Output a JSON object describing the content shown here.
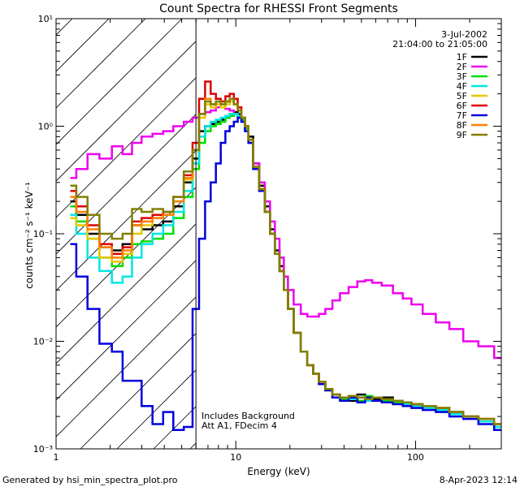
{
  "chart_data": {
    "type": "line",
    "title": "Count Spectra for RHESSI Front Segments",
    "xlabel": "Energy (keV)",
    "ylabel": "counts cm⁻² s⁻¹ keV⁻¹",
    "xscale": "log",
    "yscale": "log",
    "xlim": [
      1,
      300
    ],
    "ylim": [
      0.001,
      10
    ],
    "x_ticks": [
      {
        "value": 1,
        "label": "1"
      },
      {
        "value": 10,
        "label": "10"
      },
      {
        "value": 100,
        "label": "100"
      }
    ],
    "y_ticks": [
      {
        "value": 0.001,
        "label": "10⁻³"
      },
      {
        "value": 0.01,
        "label": "10⁻²"
      },
      {
        "value": 0.1,
        "label": "10⁻¹"
      },
      {
        "value": 1,
        "label": "10⁰"
      },
      {
        "value": 10,
        "label": "10¹"
      }
    ],
    "date": "3-Jul-2002",
    "time_range": "21:04:00 to 21:05:00",
    "annotations": [
      "Includes Background",
      "Att A1, FDecim 4"
    ],
    "shaded_region": {
      "xmin": 1,
      "xmax": 6
    },
    "legend_position": "top-right",
    "x": [
      1.2,
      1.4,
      1.6,
      1.9,
      2.2,
      2.5,
      2.8,
      3.2,
      3.7,
      4.2,
      4.8,
      5.5,
      6.0,
      6.5,
      7.0,
      7.5,
      8.0,
      8.5,
      9.0,
      9.5,
      10.0,
      10.5,
      11.0,
      11.5,
      12,
      13,
      14,
      15,
      16,
      17,
      18,
      19,
      20,
      22,
      24,
      26,
      28,
      30,
      33,
      36,
      40,
      45,
      50,
      55,
      60,
      70,
      80,
      90,
      100,
      120,
      140,
      170,
      200,
      250,
      300
    ],
    "series": [
      {
        "name": "1F",
        "color": "#000000",
        "values": [
          0.2,
          0.15,
          0.1,
          0.075,
          0.07,
          0.08,
          0.12,
          0.11,
          0.12,
          0.13,
          0.18,
          0.3,
          0.5,
          0.9,
          1.0,
          1.05,
          1.1,
          1.15,
          1.2,
          1.3,
          1.35,
          1.3,
          1.2,
          1.0,
          0.8,
          0.45,
          0.28,
          0.18,
          0.11,
          0.07,
          0.05,
          0.03,
          0.02,
          0.012,
          0.008,
          0.006,
          0.005,
          0.004,
          0.0035,
          0.003,
          0.003,
          0.0028,
          0.0032,
          0.003,
          0.0029,
          0.003,
          0.0028,
          0.0027,
          0.0026,
          0.0025,
          0.0024,
          0.0022,
          0.002,
          0.0018,
          0.0015
        ]
      },
      {
        "name": "2F",
        "color": "#ee00ee",
        "values": [
          0.33,
          0.4,
          0.55,
          0.5,
          0.65,
          0.55,
          0.7,
          0.8,
          0.85,
          0.9,
          1.0,
          1.1,
          1.2,
          1.3,
          1.35,
          1.4,
          1.5,
          1.5,
          1.45,
          1.4,
          1.3,
          1.2,
          1.1,
          0.9,
          0.7,
          0.45,
          0.3,
          0.2,
          0.13,
          0.09,
          0.06,
          0.04,
          0.03,
          0.022,
          0.018,
          0.017,
          0.017,
          0.018,
          0.02,
          0.024,
          0.028,
          0.032,
          0.036,
          0.037,
          0.035,
          0.033,
          0.028,
          0.025,
          0.022,
          0.018,
          0.015,
          0.013,
          0.01,
          0.009,
          0.007
        ]
      },
      {
        "name": "3F",
        "color": "#00dd00",
        "values": [
          0.18,
          0.13,
          0.09,
          0.06,
          0.05,
          0.06,
          0.08,
          0.085,
          0.09,
          0.1,
          0.14,
          0.22,
          0.4,
          0.7,
          0.9,
          1.0,
          1.05,
          1.1,
          1.2,
          1.25,
          1.3,
          1.25,
          1.15,
          0.95,
          0.75,
          0.42,
          0.25,
          0.16,
          0.1,
          0.065,
          0.045,
          0.03,
          0.02,
          0.012,
          0.008,
          0.006,
          0.005,
          0.004,
          0.0035,
          0.003,
          0.0029,
          0.003,
          0.0028,
          0.0031,
          0.003,
          0.0028,
          0.0027,
          0.0026,
          0.0025,
          0.0024,
          0.0023,
          0.0021,
          0.002,
          0.0018,
          0.0016
        ]
      },
      {
        "name": "4F",
        "color": "#00e5e5",
        "values": [
          0.15,
          0.1,
          0.06,
          0.045,
          0.035,
          0.04,
          0.06,
          0.08,
          0.1,
          0.12,
          0.16,
          0.25,
          0.45,
          0.8,
          1.0,
          1.1,
          1.15,
          1.2,
          1.25,
          1.3,
          1.3,
          1.25,
          1.1,
          0.9,
          0.7,
          0.4,
          0.25,
          0.16,
          0.1,
          0.065,
          0.045,
          0.03,
          0.02,
          0.012,
          0.008,
          0.006,
          0.005,
          0.004,
          0.0036,
          0.0032,
          0.003,
          0.0029,
          0.003,
          0.0028,
          0.003,
          0.0029,
          0.0028,
          0.0026,
          0.0025,
          0.0024,
          0.0023,
          0.0021,
          0.002,
          0.0018,
          0.0016
        ]
      },
      {
        "name": "5F",
        "color": "#e5c800",
        "values": [
          0.14,
          0.12,
          0.09,
          0.06,
          0.055,
          0.065,
          0.1,
          0.12,
          0.14,
          0.15,
          0.2,
          0.32,
          0.6,
          1.2,
          1.6,
          1.5,
          1.6,
          1.5,
          1.6,
          1.7,
          1.6,
          1.4,
          1.2,
          1.0,
          0.75,
          0.42,
          0.26,
          0.16,
          0.1,
          0.065,
          0.045,
          0.03,
          0.02,
          0.012,
          0.008,
          0.006,
          0.005,
          0.0042,
          0.0036,
          0.0032,
          0.003,
          0.0031,
          0.003,
          0.0029,
          0.003,
          0.0029,
          0.0028,
          0.0027,
          0.0026,
          0.0025,
          0.0024,
          0.0022,
          0.002,
          0.0019,
          0.0017
        ]
      },
      {
        "name": "6F",
        "color": "#dd0000",
        "values": [
          0.25,
          0.18,
          0.12,
          0.08,
          0.065,
          0.075,
          0.13,
          0.14,
          0.15,
          0.16,
          0.22,
          0.35,
          0.7,
          1.8,
          2.6,
          2.0,
          1.8,
          1.7,
          1.9,
          2.0,
          1.8,
          1.5,
          1.2,
          1.0,
          0.75,
          0.42,
          0.26,
          0.16,
          0.1,
          0.065,
          0.045,
          0.03,
          0.02,
          0.012,
          0.008,
          0.006,
          0.005,
          0.0042,
          0.0036,
          0.0032,
          0.003,
          0.0031,
          0.003,
          0.0029,
          0.003,
          0.0029,
          0.0028,
          0.0027,
          0.0026,
          0.0025,
          0.0024,
          0.0022,
          0.002,
          0.0019,
          0.0017
        ]
      },
      {
        "name": "7F",
        "color": "#0000dd",
        "values": [
          0.08,
          0.04,
          0.02,
          0.0095,
          0.008,
          0.0043,
          0.0043,
          0.0025,
          0.0017,
          0.0022,
          0.0015,
          0.0016,
          0.02,
          0.09,
          0.2,
          0.3,
          0.45,
          0.7,
          0.9,
          1.0,
          1.1,
          1.2,
          1.1,
          0.9,
          0.7,
          0.4,
          0.25,
          0.16,
          0.1,
          0.065,
          0.045,
          0.03,
          0.02,
          0.012,
          0.008,
          0.006,
          0.005,
          0.004,
          0.0035,
          0.003,
          0.0028,
          0.003,
          0.0027,
          0.003,
          0.0028,
          0.0027,
          0.0026,
          0.0025,
          0.0024,
          0.0023,
          0.0022,
          0.002,
          0.0019,
          0.0017,
          0.0015
        ]
      },
      {
        "name": "8F",
        "color": "#ff8000",
        "values": [
          0.22,
          0.16,
          0.11,
          0.075,
          0.06,
          0.07,
          0.12,
          0.13,
          0.14,
          0.15,
          0.2,
          0.33,
          0.6,
          1.3,
          1.8,
          1.6,
          1.7,
          1.6,
          1.7,
          1.8,
          1.6,
          1.4,
          1.2,
          1.0,
          0.75,
          0.42,
          0.26,
          0.16,
          0.1,
          0.065,
          0.045,
          0.03,
          0.02,
          0.012,
          0.008,
          0.006,
          0.005,
          0.0042,
          0.0036,
          0.0032,
          0.003,
          0.0031,
          0.003,
          0.0029,
          0.003,
          0.0029,
          0.0028,
          0.0027,
          0.0026,
          0.0025,
          0.0024,
          0.0022,
          0.002,
          0.0019,
          0.0017
        ]
      },
      {
        "name": "9F",
        "color": "#808000",
        "values": [
          0.28,
          0.22,
          0.15,
          0.1,
          0.09,
          0.1,
          0.17,
          0.16,
          0.17,
          0.16,
          0.22,
          0.38,
          0.6,
          1.3,
          1.7,
          1.6,
          1.7,
          1.6,
          1.7,
          1.8,
          1.6,
          1.4,
          1.2,
          1.0,
          0.75,
          0.42,
          0.26,
          0.16,
          0.1,
          0.065,
          0.045,
          0.03,
          0.02,
          0.012,
          0.008,
          0.006,
          0.005,
          0.0042,
          0.0036,
          0.0032,
          0.003,
          0.0031,
          0.003,
          0.0029,
          0.003,
          0.0029,
          0.0028,
          0.0027,
          0.0026,
          0.0025,
          0.0024,
          0.0022,
          0.002,
          0.0019,
          0.0017
        ]
      }
    ]
  },
  "footer": {
    "left": "Generated by hsi_min_spectra_plot.pro",
    "right": "8-Apr-2023 12:14"
  }
}
